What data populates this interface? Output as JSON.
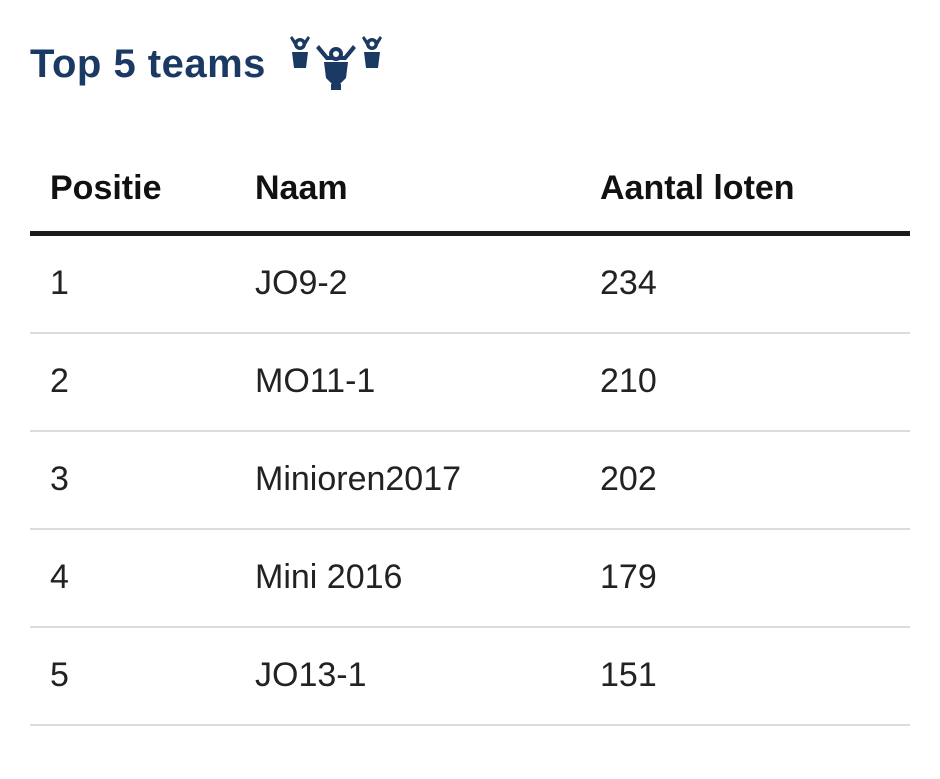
{
  "header": {
    "title": "Top 5 teams",
    "icon": "trophy-team-icon",
    "title_color": "#1b3a63"
  },
  "table": {
    "columns": [
      "Positie",
      "Naam",
      "Aantal loten"
    ],
    "rows": [
      {
        "position": "1",
        "name": "JO9-2",
        "count": "234"
      },
      {
        "position": "2",
        "name": "MO11-1",
        "count": "210"
      },
      {
        "position": "3",
        "name": "Minioren2017",
        "count": "202"
      },
      {
        "position": "4",
        "name": "Mini 2016",
        "count": "179"
      },
      {
        "position": "5",
        "name": "JO13-1",
        "count": "151"
      }
    ]
  }
}
